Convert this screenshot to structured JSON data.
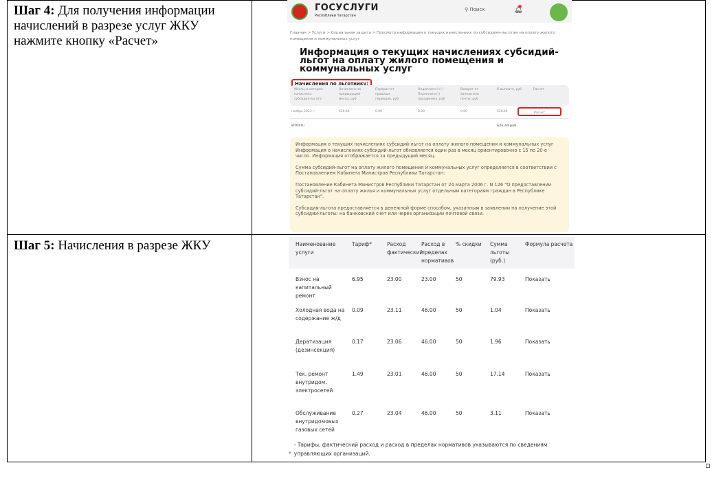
{
  "steps": [
    {
      "label": "Шаг 4:",
      "text": "Для получения информации начислений в разрезе услуг ЖКУ нажмите кнопку «Расчет»"
    },
    {
      "label": "Шаг 5:",
      "text": "Начисления в разрезе ЖКУ"
    }
  ],
  "screen1": {
    "brand": "ГОСУСЛУГИ",
    "brand_sub": "Республики Татарстан",
    "search": "Поиск",
    "breadcrumbs": "Главная  >  Услуги  >  Социальная защита  >  Просмотр информации о текущих начислениях по субсидиям-льготам на оплату жилого помещения и коммунальных услуг",
    "title": "Информация о текущих начислениях субсидий-льгот на оплату жилого помещения и коммунальных услуг",
    "section": "Начисления по льготнику:",
    "headers": [
      "Месяц, в котором начислена субсидия-льгота",
      "Начислено за предыдущий месяц, руб",
      "Перерасчет прошлых периодов, руб",
      "Недоплата (+) / Переплата (-) праздинику, руб",
      "Возврат от банков или почты, руб",
      "К выплате, руб",
      "Расчет"
    ],
    "row": [
      "ноябрь 2023 г.",
      "626.44",
      "0.00",
      "0.00",
      "0.00",
      "626.44"
    ],
    "calc_button": "Расчет",
    "total_label": "ИТОГО:",
    "total_value": "626.44 руб.",
    "notes": [
      "Информация о текущих начислениях субсидий-льгот на оплату жилого помещения и коммунальных услуг Информация о начислениях субсидий-льгот обновляется один раз в месяц ориентировочно с 15 по 20-е число. Информация отображается за предыдущий месяц.",
      "Сумма субсидий-льгот на оплату жилого помещения и коммунальных услуг определяется в соответствии с Постановлением Кабинета Министров Республики Татарстан:",
      "Постановление Кабинета Министров Республики Татарстан от 24 марта 2006 г. N 126 \"О предоставлении субсидий-льгот на оплату жилья и коммунальных услуг отдельным категориям граждан в Республике Татарстан\".",
      "Субсидия-льгота предоставляется в денежной форме способом, указанным в заявлении на получение этой субсидии-льготы: на банковский счет или через организации почтовой связи."
    ],
    "colors": {
      "highlight": "#e02020",
      "note_bg": "#fdf5dc"
    }
  },
  "screen2": {
    "headers": [
      "Наименование услуги",
      "Тариф*",
      "Расход фактический",
      "Расход в пределах нормативов",
      "% скидки",
      "Сумма льготы (руб.)",
      "Формула расчета"
    ],
    "rows": [
      [
        "Взнос на капитальный ремонт",
        "6.95",
        "23.00",
        "23.00",
        "50",
        "79.93",
        "Показать"
      ],
      [
        "Холодная вода на содержание ж/д",
        "0.09",
        "23.11",
        "46.00",
        "50",
        "1.04",
        "Показать"
      ],
      [
        "Дератизация (дезинсекция)",
        "0.17",
        "23.06",
        "46.00",
        "50",
        "1.96",
        "Показать"
      ],
      [
        "Тек. ремонт внутридом. электросетей",
        "1.49",
        "23.01",
        "46.00",
        "50",
        "17.14",
        "Показать"
      ],
      [
        "Обслуживание внутридомовых газовых сетей",
        "0.27",
        "23.04",
        "46.00",
        "50",
        "3.11",
        "Показать"
      ]
    ],
    "footnote_mark": "*",
    "footnote": " - Тарифы, фактический расход и расход в пределах нормативов указываются по сведениям управляющих организаций."
  }
}
